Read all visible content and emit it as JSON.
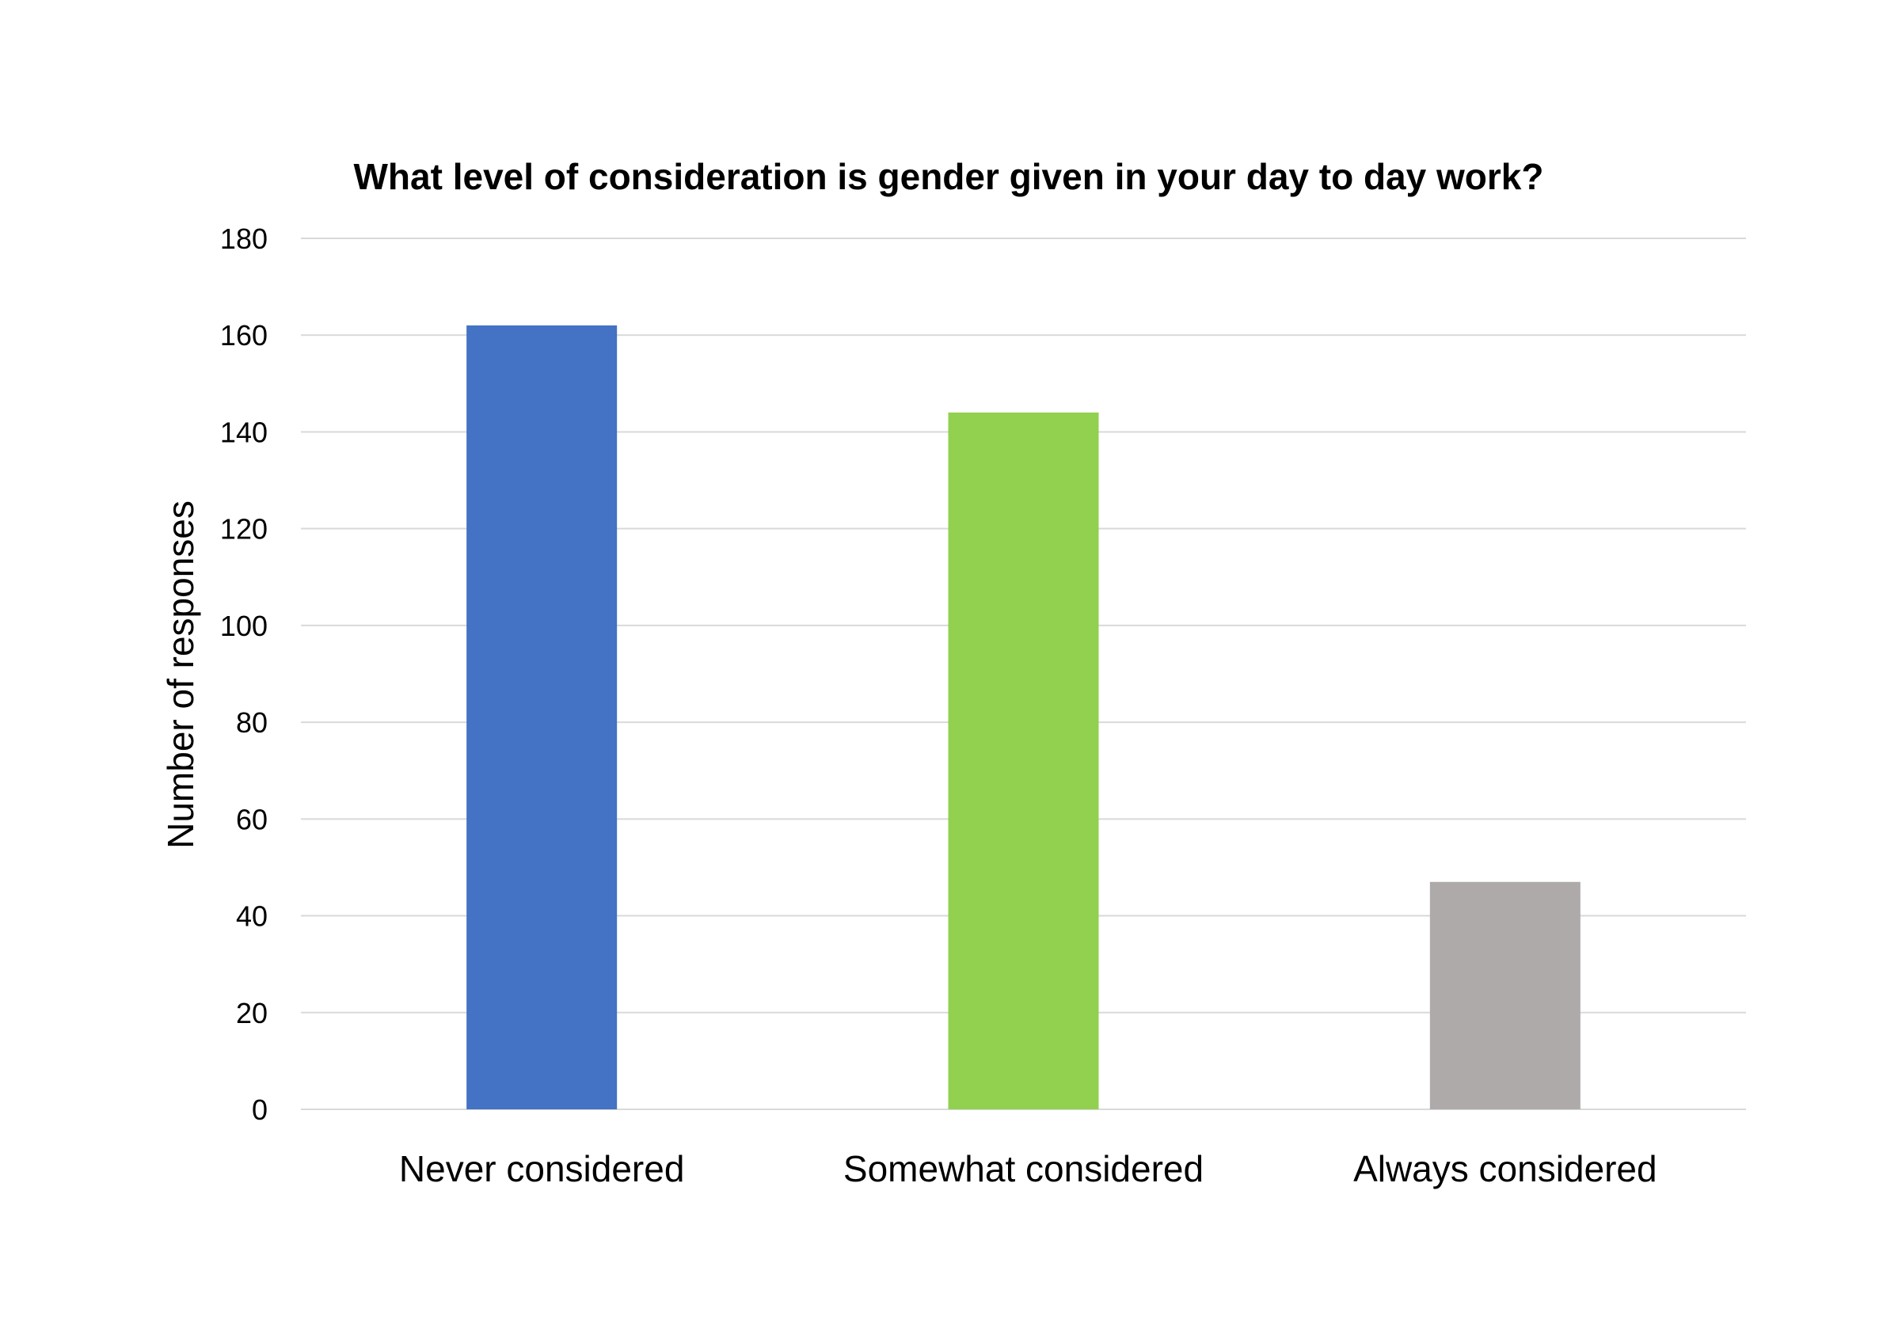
{
  "chart_data": {
    "type": "bar",
    "title": "What level of consideration is gender given in your day to day work?",
    "xlabel": "",
    "ylabel": "Number of responses",
    "categories": [
      "Never considered",
      "Somewhat considered",
      "Always considered"
    ],
    "values": [
      162,
      144,
      47
    ],
    "bar_colors": [
      "#4472c4",
      "#92d050",
      "#aeaaaa"
    ],
    "ylim": [
      0,
      180
    ],
    "yticks": [
      0,
      20,
      40,
      60,
      80,
      100,
      120,
      140,
      160,
      180
    ],
    "grid": true,
    "legend": "none"
  }
}
